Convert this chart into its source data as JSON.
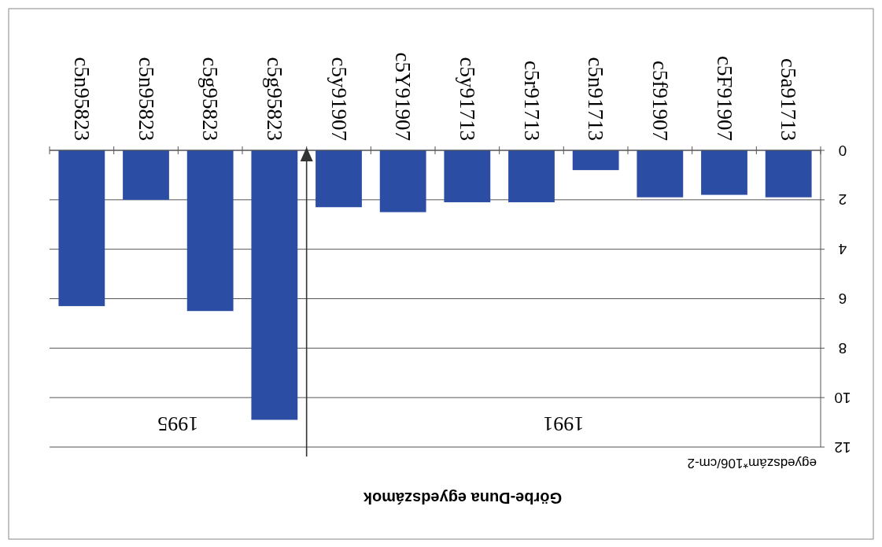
{
  "chart_data": {
    "type": "bar",
    "title": "Görbe-Duna egyedszámok",
    "categories": [
      "c5n95823",
      "c5n95823",
      "c5g95823",
      "c5g95823",
      "c5y91907",
      "c5Y91907",
      "c5y91713",
      "c5r91713",
      "c5n91713",
      "c5f91907",
      "c5F91907",
      "c5a91713"
    ],
    "values": [
      6.3,
      2.0,
      6.5,
      10.9,
      2.3,
      2.5,
      2.1,
      2.1,
      0.8,
      1.9,
      1.8,
      1.9
    ],
    "color": "#2b4da3",
    "ylim": [
      12,
      0
    ],
    "yticks": [
      0,
      2,
      4,
      6,
      8,
      10,
      12
    ],
    "grid": "y",
    "annotations": [
      "1995",
      "1991",
      "egyedszám*106/cm-2"
    ]
  }
}
